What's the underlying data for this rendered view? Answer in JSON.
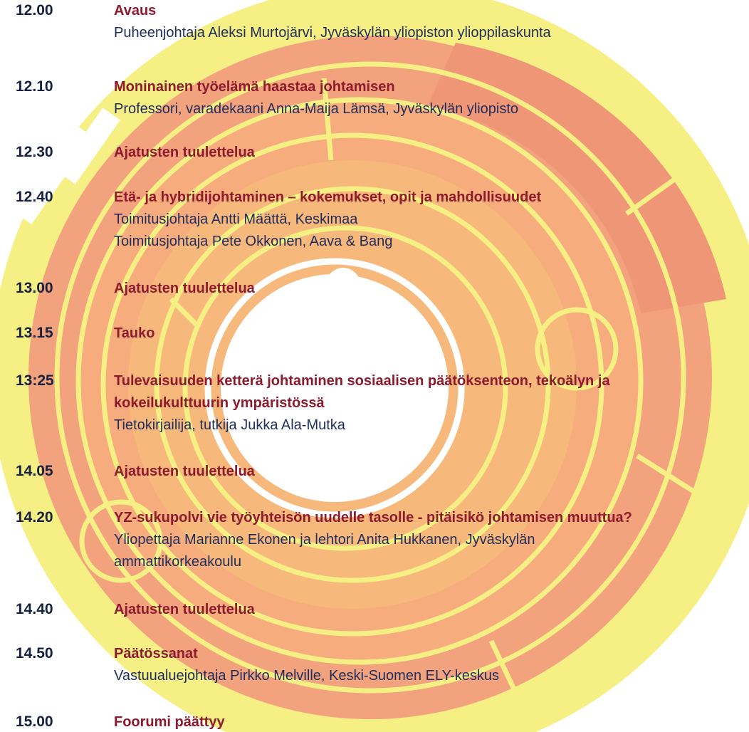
{
  "agenda": [
    {
      "time": "12.00",
      "title": [
        "Avaus"
      ],
      "details": [
        "Puheenjohtaja Aleksi Murtojärvi, Jyväskylän yliopiston ylioppilaskunta"
      ]
    },
    {
      "time": "12.10",
      "title": [
        "Moninainen työelämä haastaa johtamisen"
      ],
      "details": [
        "Professori, varadekaani Anna-Maija Lämsä, Jyväskylän yliopisto"
      ]
    },
    {
      "time": "12.30",
      "title": [
        "Ajatusten tuulettelua"
      ],
      "details": []
    },
    {
      "time": "12.40",
      "title": [
        "Etä- ja hybridijohtaminen – kokemukset, opit ja mahdollisuudet"
      ],
      "details": [
        "Toimitusjohtaja Antti Määttä, Keskimaa",
        "Toimitusjohtaja Pete Okkonen, Aava & Bang"
      ]
    },
    {
      "time": "13.00",
      "title": [
        "Ajatusten tuulettelua"
      ],
      "details": []
    },
    {
      "time": "13.15",
      "title": [
        "Tauko"
      ],
      "details": []
    },
    {
      "time": "13:25",
      "title": [
        "Tulevaisuuden ketterä johtaminen sosiaalisen päätöksenteon, tekoälyn ja",
        "kokeilukulttuurin ympäristössä"
      ],
      "details": [
        "Tietokirjailija, tutkija Jukka Ala-Mutka"
      ]
    },
    {
      "time": "14.05",
      "title": [
        "Ajatusten tuulettelua"
      ],
      "details": []
    },
    {
      "time": "14.20",
      "title": [
        "YZ-sukupolvi vie työyhteisön uudelle tasolle - pitäisikö johtamisen muuttua?"
      ],
      "details": [
        "Yliopettaja Marianne Ekonen ja lehtori Anita Hukkanen, Jyväskylän",
        "ammattikorkeakoulu"
      ]
    },
    {
      "time": "14.40",
      "title": [
        "Ajatusten tuulettelua"
      ],
      "details": []
    },
    {
      "time": "14.50",
      "title": [
        "Päätössanat"
      ],
      "details": [
        "Vastuualuejohtaja Pirkko Melville, Keski-Suomen ELY-keskus"
      ]
    },
    {
      "time": "15.00",
      "title": [
        "Foorumi päättyy"
      ],
      "details": []
    }
  ]
}
